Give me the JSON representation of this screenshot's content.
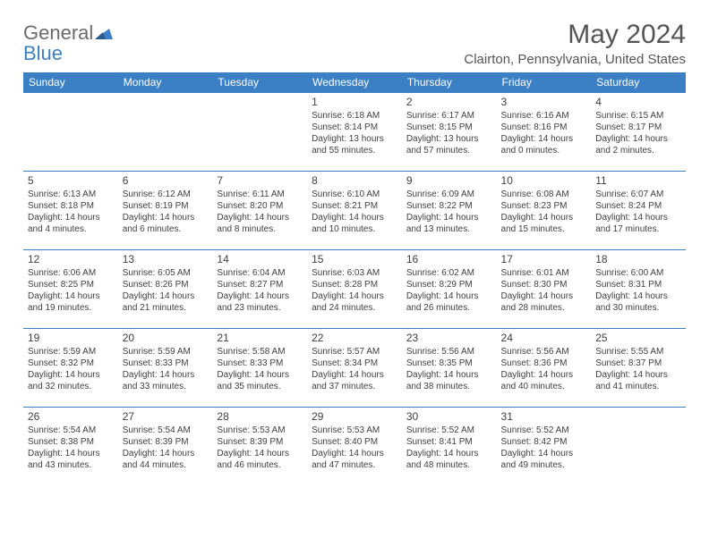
{
  "logo": {
    "general": "General",
    "blue": "Blue"
  },
  "title": "May 2024",
  "location": "Clairton, Pennsylvania, United States",
  "colors": {
    "header_bg": "#3b7fc4",
    "header_text": "#ffffff",
    "border": "#3b7fc4",
    "body_text": "#404040",
    "title_text": "#555555"
  },
  "dayHeaders": [
    "Sunday",
    "Monday",
    "Tuesday",
    "Wednesday",
    "Thursday",
    "Friday",
    "Saturday"
  ],
  "weeks": [
    [
      null,
      null,
      null,
      {
        "n": "1",
        "sr": "6:18 AM",
        "ss": "8:14 PM",
        "dl": "13 hours and 55 minutes."
      },
      {
        "n": "2",
        "sr": "6:17 AM",
        "ss": "8:15 PM",
        "dl": "13 hours and 57 minutes."
      },
      {
        "n": "3",
        "sr": "6:16 AM",
        "ss": "8:16 PM",
        "dl": "14 hours and 0 minutes."
      },
      {
        "n": "4",
        "sr": "6:15 AM",
        "ss": "8:17 PM",
        "dl": "14 hours and 2 minutes."
      }
    ],
    [
      {
        "n": "5",
        "sr": "6:13 AM",
        "ss": "8:18 PM",
        "dl": "14 hours and 4 minutes."
      },
      {
        "n": "6",
        "sr": "6:12 AM",
        "ss": "8:19 PM",
        "dl": "14 hours and 6 minutes."
      },
      {
        "n": "7",
        "sr": "6:11 AM",
        "ss": "8:20 PM",
        "dl": "14 hours and 8 minutes."
      },
      {
        "n": "8",
        "sr": "6:10 AM",
        "ss": "8:21 PM",
        "dl": "14 hours and 10 minutes."
      },
      {
        "n": "9",
        "sr": "6:09 AM",
        "ss": "8:22 PM",
        "dl": "14 hours and 13 minutes."
      },
      {
        "n": "10",
        "sr": "6:08 AM",
        "ss": "8:23 PM",
        "dl": "14 hours and 15 minutes."
      },
      {
        "n": "11",
        "sr": "6:07 AM",
        "ss": "8:24 PM",
        "dl": "14 hours and 17 minutes."
      }
    ],
    [
      {
        "n": "12",
        "sr": "6:06 AM",
        "ss": "8:25 PM",
        "dl": "14 hours and 19 minutes."
      },
      {
        "n": "13",
        "sr": "6:05 AM",
        "ss": "8:26 PM",
        "dl": "14 hours and 21 minutes."
      },
      {
        "n": "14",
        "sr": "6:04 AM",
        "ss": "8:27 PM",
        "dl": "14 hours and 23 minutes."
      },
      {
        "n": "15",
        "sr": "6:03 AM",
        "ss": "8:28 PM",
        "dl": "14 hours and 24 minutes."
      },
      {
        "n": "16",
        "sr": "6:02 AM",
        "ss": "8:29 PM",
        "dl": "14 hours and 26 minutes."
      },
      {
        "n": "17",
        "sr": "6:01 AM",
        "ss": "8:30 PM",
        "dl": "14 hours and 28 minutes."
      },
      {
        "n": "18",
        "sr": "6:00 AM",
        "ss": "8:31 PM",
        "dl": "14 hours and 30 minutes."
      }
    ],
    [
      {
        "n": "19",
        "sr": "5:59 AM",
        "ss": "8:32 PM",
        "dl": "14 hours and 32 minutes."
      },
      {
        "n": "20",
        "sr": "5:59 AM",
        "ss": "8:33 PM",
        "dl": "14 hours and 33 minutes."
      },
      {
        "n": "21",
        "sr": "5:58 AM",
        "ss": "8:33 PM",
        "dl": "14 hours and 35 minutes."
      },
      {
        "n": "22",
        "sr": "5:57 AM",
        "ss": "8:34 PM",
        "dl": "14 hours and 37 minutes."
      },
      {
        "n": "23",
        "sr": "5:56 AM",
        "ss": "8:35 PM",
        "dl": "14 hours and 38 minutes."
      },
      {
        "n": "24",
        "sr": "5:56 AM",
        "ss": "8:36 PM",
        "dl": "14 hours and 40 minutes."
      },
      {
        "n": "25",
        "sr": "5:55 AM",
        "ss": "8:37 PM",
        "dl": "14 hours and 41 minutes."
      }
    ],
    [
      {
        "n": "26",
        "sr": "5:54 AM",
        "ss": "8:38 PM",
        "dl": "14 hours and 43 minutes."
      },
      {
        "n": "27",
        "sr": "5:54 AM",
        "ss": "8:39 PM",
        "dl": "14 hours and 44 minutes."
      },
      {
        "n": "28",
        "sr": "5:53 AM",
        "ss": "8:39 PM",
        "dl": "14 hours and 46 minutes."
      },
      {
        "n": "29",
        "sr": "5:53 AM",
        "ss": "8:40 PM",
        "dl": "14 hours and 47 minutes."
      },
      {
        "n": "30",
        "sr": "5:52 AM",
        "ss": "8:41 PM",
        "dl": "14 hours and 48 minutes."
      },
      {
        "n": "31",
        "sr": "5:52 AM",
        "ss": "8:42 PM",
        "dl": "14 hours and 49 minutes."
      },
      null
    ]
  ]
}
